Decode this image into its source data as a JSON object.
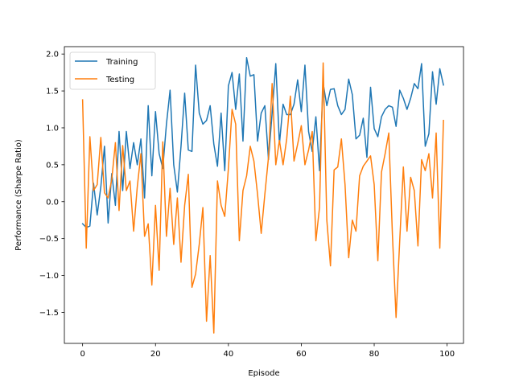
{
  "chart_data": {
    "type": "line",
    "title": "",
    "xlabel": "Episode",
    "ylabel": "Performance (Sharpe Ratio)",
    "xlim": [
      -5,
      104.5
    ],
    "ylim": [
      -1.92,
      2.1
    ],
    "x_ticks": [
      0,
      20,
      40,
      60,
      80,
      100
    ],
    "y_ticks": [
      -1.5,
      -1.0,
      -0.5,
      0.0,
      0.5,
      1.0,
      1.5,
      2.0
    ],
    "x_tick_labels": [
      "0",
      "20",
      "40",
      "60",
      "80",
      "100"
    ],
    "y_tick_labels": [
      "−1.5",
      "−1.0",
      "−0.5",
      "0.0",
      "0.5",
      "1.0",
      "1.5",
      "2.0"
    ],
    "grid": false,
    "legend_position": "top-left",
    "x": [
      0,
      1,
      2,
      3,
      4,
      5,
      6,
      7,
      8,
      9,
      10,
      11,
      12,
      13,
      14,
      15,
      16,
      17,
      18,
      19,
      20,
      21,
      22,
      23,
      24,
      25,
      26,
      27,
      28,
      29,
      30,
      31,
      32,
      33,
      34,
      35,
      36,
      37,
      38,
      39,
      40,
      41,
      42,
      43,
      44,
      45,
      46,
      47,
      48,
      49,
      50,
      51,
      52,
      53,
      54,
      55,
      56,
      57,
      58,
      59,
      60,
      61,
      62,
      63,
      64,
      65,
      66,
      67,
      68,
      69,
      70,
      71,
      72,
      73,
      74,
      75,
      76,
      77,
      78,
      79,
      80,
      81,
      82,
      83,
      84,
      85,
      86,
      87,
      88,
      89,
      90,
      91,
      92,
      93,
      94,
      95,
      96,
      97,
      98,
      99
    ],
    "series": [
      {
        "name": "Training",
        "color": "#1f77b4",
        "values": [
          -0.3,
          -0.35,
          -0.33,
          0.25,
          -0.18,
          0.2,
          0.75,
          -0.29,
          0.38,
          -0.05,
          0.95,
          0.15,
          0.95,
          0.45,
          0.8,
          0.5,
          0.85,
          0.05,
          1.3,
          0.35,
          1.22,
          0.65,
          0.45,
          1.05,
          1.51,
          0.5,
          0.13,
          0.75,
          1.47,
          0.7,
          0.68,
          1.85,
          1.2,
          1.05,
          1.1,
          1.3,
          0.78,
          0.48,
          1.2,
          0.42,
          1.57,
          1.75,
          1.25,
          1.73,
          0.82,
          1.95,
          1.7,
          1.72,
          0.82,
          1.2,
          1.3,
          0.57,
          1.2,
          1.87,
          0.78,
          1.32,
          1.18,
          1.18,
          1.32,
          1.65,
          1.22,
          1.85,
          0.95,
          0.68,
          1.15,
          0.42,
          1.6,
          1.3,
          1.52,
          1.53,
          1.3,
          1.18,
          1.25,
          1.66,
          1.45,
          0.85,
          0.9,
          1.13,
          0.6,
          1.55,
          0.99,
          0.88,
          1.15,
          1.25,
          1.3,
          1.28,
          1.02,
          1.51,
          1.4,
          1.25,
          1.4,
          1.6,
          1.53,
          1.87,
          0.75,
          0.92,
          1.76,
          1.32,
          1.8,
          1.58
        ]
      },
      {
        "name": "Testing",
        "color": "#ff7f0e",
        "values": [
          1.38,
          -0.63,
          0.88,
          0.15,
          0.23,
          0.87,
          0.12,
          0.05,
          0.3,
          0.8,
          -0.12,
          0.76,
          0.15,
          0.28,
          -0.4,
          0.2,
          0.65,
          -0.47,
          -0.3,
          -1.13,
          -0.05,
          -0.93,
          0.81,
          -0.47,
          0.18,
          -0.58,
          0.05,
          -0.82,
          -0.05,
          0.37,
          -1.16,
          -0.98,
          -0.58,
          -0.08,
          -1.62,
          -0.73,
          -1.78,
          0.28,
          -0.05,
          -0.2,
          0.45,
          1.25,
          1.05,
          -0.53,
          0.15,
          0.35,
          0.75,
          0.55,
          0.1,
          -0.43,
          0.1,
          0.6,
          1.6,
          0.5,
          0.83,
          0.5,
          0.85,
          1.43,
          0.55,
          0.78,
          1.03,
          0.5,
          0.7,
          0.95,
          -0.53,
          -0.08,
          1.88,
          -0.25,
          -0.87,
          0.43,
          0.47,
          0.85,
          0.23,
          -0.76,
          -0.25,
          -0.4,
          0.35,
          0.48,
          0.55,
          0.62,
          0.23,
          -0.8,
          0.4,
          0.65,
          0.93,
          -0.45,
          -1.57,
          -0.53,
          0.47,
          -0.4,
          0.33,
          0.15,
          -0.6,
          0.57,
          0.42,
          0.65,
          0.05,
          0.93,
          -0.63,
          1.1
        ]
      }
    ]
  }
}
